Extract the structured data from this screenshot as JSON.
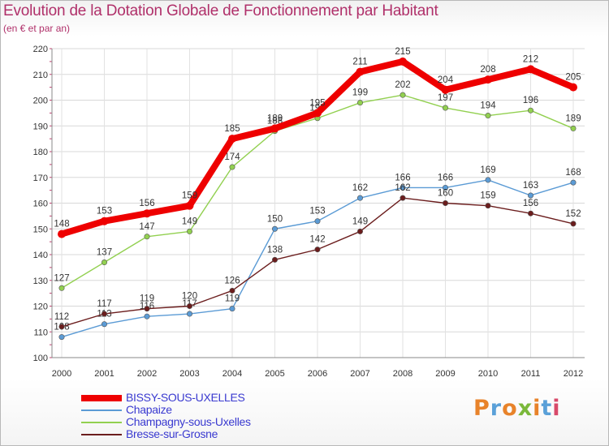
{
  "title": "Evolution de la Dotation Globale de Fonctionnement par Habitant",
  "subtitle": "(en € et par an)",
  "logo": {
    "text": "Proxiti",
    "colors": [
      "#e8832a",
      "#5aa0d8",
      "#e8832a",
      "#7ab83a",
      "#e8832a",
      "#5aa0d8",
      "#d84a6a"
    ]
  },
  "chart_data": {
    "type": "line",
    "title": "Evolution de la Dotation Globale de Fonctionnement par Habitant",
    "ylabel": "(en € et par an)",
    "xlabel": "",
    "categories": [
      "2000",
      "2001",
      "2002",
      "2003",
      "2004",
      "2005",
      "2006",
      "2007",
      "2008",
      "2009",
      "2010",
      "2011",
      "2012"
    ],
    "ylim": [
      100,
      220
    ],
    "yticks": [
      100,
      110,
      120,
      130,
      140,
      150,
      160,
      170,
      180,
      190,
      200,
      210,
      220
    ],
    "grid": true,
    "legend": "bottom-left",
    "series": [
      {
        "name": "BISSY-SOUS-UXELLES",
        "color": "#ee0000",
        "values": [
          148,
          153,
          156,
          159,
          185,
          189,
          195,
          211,
          215,
          204,
          208,
          212,
          205
        ]
      },
      {
        "name": "Chapaize",
        "color": "#5b9bd5",
        "values": [
          108,
          113,
          116,
          117,
          119,
          150,
          153,
          162,
          166,
          166,
          169,
          163,
          168
        ]
      },
      {
        "name": "Champagny-sous-Uxelles",
        "color": "#92d050",
        "values": [
          127,
          137,
          147,
          149,
          174,
          188,
          193,
          199,
          202,
          197,
          194,
          196,
          189
        ]
      },
      {
        "name": "Bresse-sur-Grosne",
        "color": "#6b1d1d",
        "values": [
          112,
          117,
          119,
          120,
          126,
          138,
          142,
          149,
          162,
          160,
          159,
          156,
          152
        ]
      }
    ]
  }
}
